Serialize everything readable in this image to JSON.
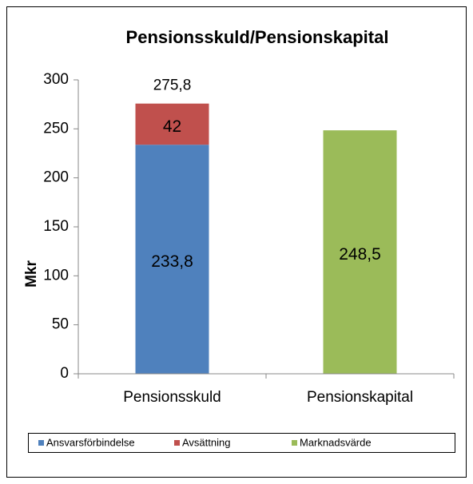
{
  "chart_data": {
    "type": "stacked-bar",
    "title": "Pensionsskuld/Pensionskapital",
    "y_label": "Mkr",
    "categories": [
      "Pensionsskuld",
      "Pensionskapital"
    ],
    "series": [
      {
        "name": "Ansvarsförbindelse",
        "color": "#4f81bd",
        "values": [
          233.8,
          null
        ],
        "value_labels": [
          "233,8",
          null
        ]
      },
      {
        "name": "Avsättning",
        "color": "#c0504d",
        "values": [
          42,
          null
        ]
      },
      {
        "name": "Marknadsvärde",
        "color": "#9bbb59",
        "values": [
          null,
          248.5
        ],
        "value_labels": [
          null,
          "248,5"
        ]
      }
    ],
    "totals": [
      275.8,
      null
    ],
    "total_labels": [
      "275,8",
      null
    ],
    "ylim": [
      0,
      300
    ],
    "yticks": [
      0,
      50,
      100,
      150,
      200,
      250,
      300
    ],
    "legend": "bottom"
  }
}
